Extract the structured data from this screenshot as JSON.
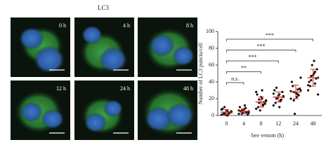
{
  "micrographs": {
    "title": "LC3",
    "panels": [
      "0 h",
      "4 h",
      "8 h",
      "12 h",
      "24 h",
      "48 h"
    ]
  },
  "chart_data": {
    "type": "dot",
    "y_label": "Number of LC3 puncta/cell",
    "x_label": "bee venom (h)",
    "categories": [
      "0",
      "4",
      "8",
      "12",
      "24",
      "48"
    ],
    "values": [
      [
        1,
        2,
        3,
        5,
        0,
        2,
        4,
        6,
        8,
        3,
        1,
        7,
        2,
        10,
        4,
        5
      ],
      [
        2,
        4,
        6,
        3,
        8,
        5,
        1,
        7,
        10,
        4,
        3,
        6,
        9,
        2,
        5,
        12
      ],
      [
        8,
        12,
        15,
        18,
        20,
        10,
        14,
        22,
        25,
        16,
        6,
        28,
        13,
        19,
        17,
        30
      ],
      [
        12,
        18,
        20,
        22,
        25,
        15,
        28,
        24,
        30,
        19,
        21,
        26,
        17,
        33,
        23,
        10
      ],
      [
        20,
        25,
        28,
        30,
        22,
        35,
        32,
        27,
        40,
        24,
        2,
        29,
        31,
        18,
        45,
        26
      ],
      [
        30,
        38,
        42,
        45,
        50,
        35,
        55,
        48,
        40,
        44,
        60,
        36,
        52,
        47,
        25,
        65
      ]
    ],
    "means": [
      4,
      5,
      16,
      22,
      28,
      45
    ],
    "errors": [
      3,
      3,
      6,
      6,
      8,
      10
    ],
    "point_color": "#111111",
    "mean_color": "#d62718",
    "ylim": [
      0,
      100
    ],
    "yticks": [
      0,
      20,
      40,
      60,
      80,
      100
    ],
    "annotations": [
      {
        "text": "n.s.",
        "from": "0",
        "to": "4"
      },
      {
        "text": "**",
        "from": "0",
        "to": "8"
      },
      {
        "text": "***",
        "from": "0",
        "to": "12"
      },
      {
        "text": "***",
        "from": "0",
        "to": "24"
      },
      {
        "text": "***",
        "from": "0",
        "to": "48"
      }
    ]
  }
}
